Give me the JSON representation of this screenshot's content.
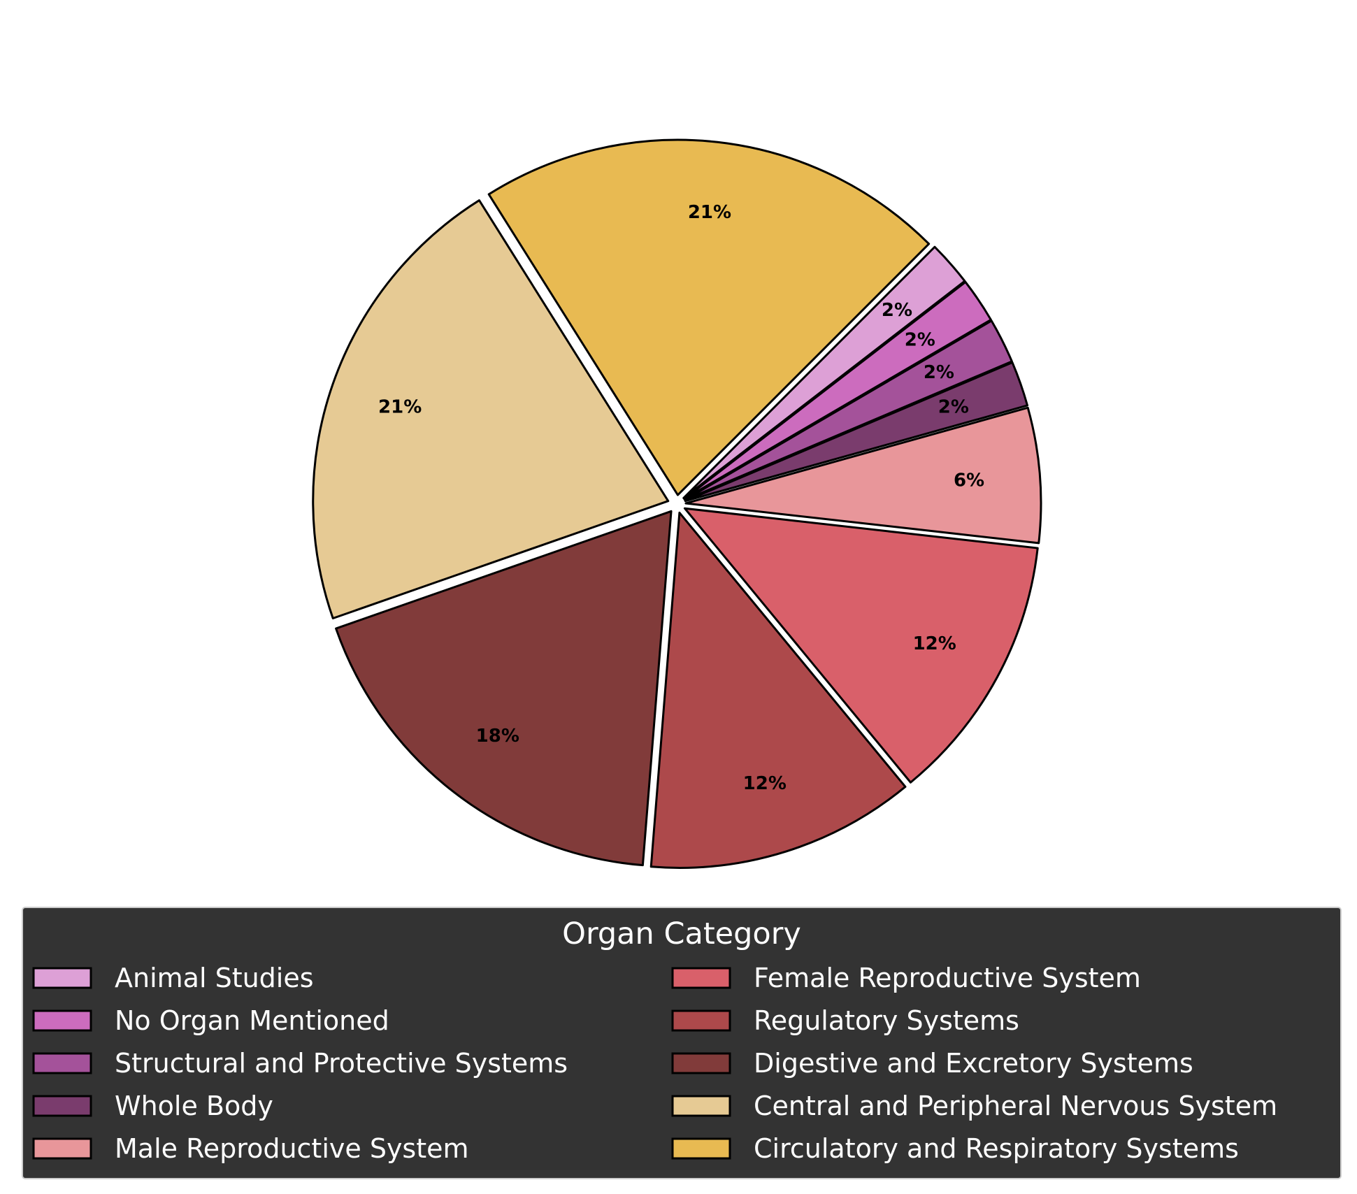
{
  "chart_data": {
    "type": "pie",
    "legend": {
      "title": "Organ Category",
      "placement": "bottom",
      "columns": 2
    },
    "slices": [
      {
        "label": "Animal Studies",
        "value": 2,
        "percent_label": "2%",
        "color": "#DDA0D6"
      },
      {
        "label": "No Organ Mentioned",
        "value": 2,
        "percent_label": "2%",
        "color": "#CC6CBE"
      },
      {
        "label": "Structural and Protective Systems",
        "value": 2,
        "percent_label": "2%",
        "color": "#A4529A"
      },
      {
        "label": "Whole Body",
        "value": 2,
        "percent_label": "2%",
        "color": "#7A3C6D"
      },
      {
        "label": "Male Reproductive System",
        "value": 6,
        "percent_label": "6%",
        "color": "#E8969A"
      },
      {
        "label": "Female Reproductive System",
        "value": 12,
        "percent_label": "12%",
        "color": "#D9606A"
      },
      {
        "label": "Regulatory Systems",
        "value": 12,
        "percent_label": "12%",
        "color": "#AD494B"
      },
      {
        "label": "Digestive and Excretory Systems",
        "value": 18,
        "percent_label": "18%",
        "color": "#813B3A"
      },
      {
        "label": "Central and Peripheral Nervous System",
        "value": 21,
        "percent_label": "21%",
        "color": "#E6CA94"
      },
      {
        "label": "Circulatory and Respiratory Systems",
        "value": 21,
        "percent_label": "21%",
        "color": "#E8BA52"
      }
    ],
    "start_angle_deg": 45,
    "direction": "clockwise",
    "exploded": true,
    "edge_color": "#000000",
    "legend_background": "#333333"
  }
}
